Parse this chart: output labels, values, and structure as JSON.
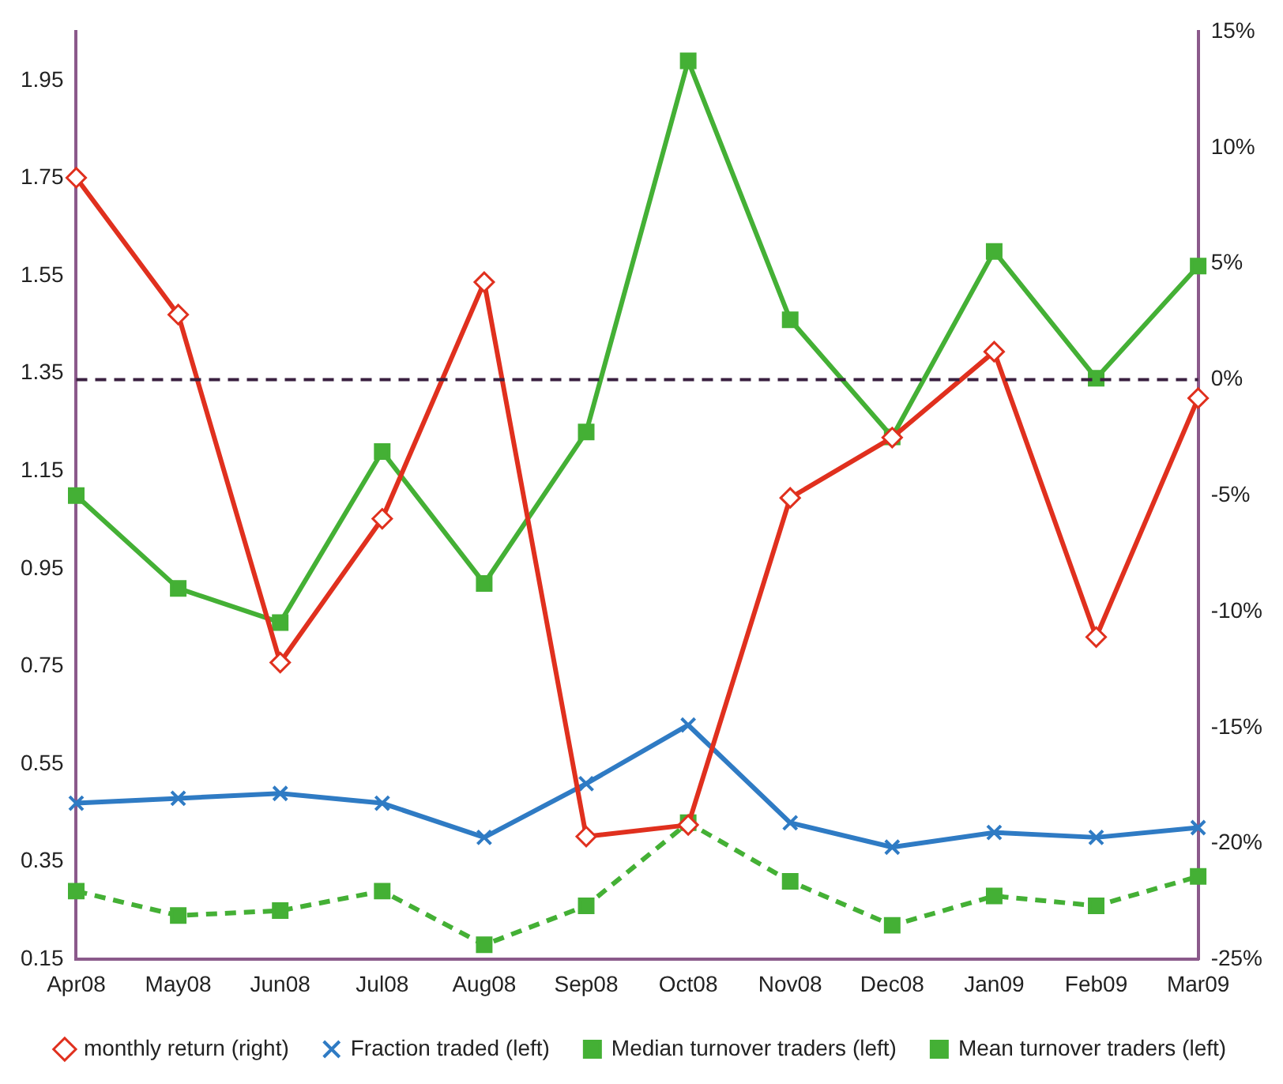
{
  "chart_data": {
    "type": "line",
    "categories": [
      "Apr08",
      "May08",
      "Jun08",
      "Jul08",
      "Aug08",
      "Sep08",
      "Oct08",
      "Nov08",
      "Dec08",
      "Jan09",
      "Feb09",
      "Mar09"
    ],
    "ylim": [
      0.15,
      2.05
    ],
    "yticks": [
      0.15,
      0.35,
      0.55,
      0.75,
      0.95,
      1.15,
      1.35,
      1.55,
      1.75,
      1.95
    ],
    "y2lim": [
      -25,
      15
    ],
    "y2ticks": [
      {
        "value": -25,
        "label": "-25%"
      },
      {
        "value": -20,
        "label": "-20%"
      },
      {
        "value": -15,
        "label": "-15%"
      },
      {
        "value": -10,
        "label": "-10%"
      },
      {
        "value": -5,
        "label": "-5%"
      },
      {
        "value": 0,
        "label": "0%"
      },
      {
        "value": 5,
        "label": "5%"
      },
      {
        "value": 10,
        "label": "10%"
      },
      {
        "value": 15,
        "label": "15%"
      }
    ],
    "grid": false,
    "legend": "bottom",
    "ref_lines": [
      {
        "axis": "y2",
        "value": 0,
        "color": "#3a2040",
        "line_style": "dashed"
      }
    ],
    "series": [
      {
        "name": "Mean turnover traders (left)",
        "color": "#44b035",
        "marker": "square",
        "line_style": "solid",
        "values": [
          1.1,
          0.91,
          0.84,
          1.19,
          0.92,
          1.23,
          1.99,
          1.46,
          1.22,
          1.6,
          1.34,
          1.57
        ]
      },
      {
        "name": "Median turnover traders (left)",
        "color": "#44b035",
        "marker": "square",
        "line_style": "dashed",
        "values": [
          0.29,
          0.24,
          0.25,
          0.29,
          0.18,
          0.26,
          0.43,
          0.31,
          0.22,
          0.28,
          0.26,
          0.32
        ]
      },
      {
        "name": "Fraction traded (left)",
        "color": "#2f7bc4",
        "marker": "cross",
        "line_style": "solid",
        "values": [
          0.47,
          0.48,
          0.49,
          0.47,
          0.4,
          0.51,
          0.63,
          0.43,
          0.38,
          0.41,
          0.4,
          0.42
        ]
      },
      {
        "name": "monthly return (right)",
        "color": "#e0301e",
        "marker": "diamond",
        "line_style": "solid",
        "axis": "y2",
        "values": [
          8.7,
          2.8,
          -12.2,
          -6.0,
          4.2,
          -19.7,
          -19.2,
          -5.1,
          -2.5,
          1.2,
          -11.1,
          -0.8
        ]
      }
    ]
  }
}
